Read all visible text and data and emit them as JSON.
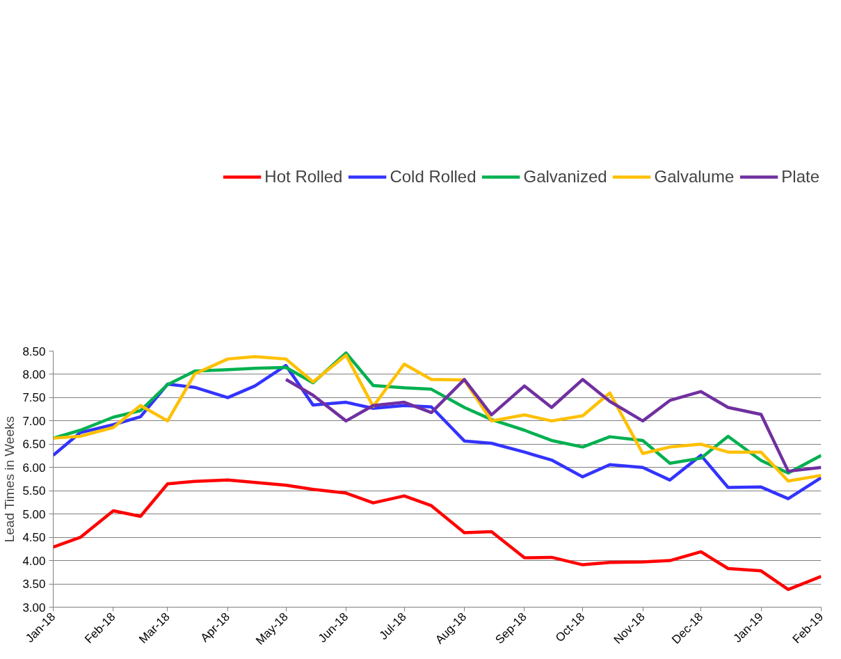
{
  "chart_data": {
    "type": "line",
    "ylabel": "Lead Times in Weeks",
    "x": [
      "2018-01-01",
      "2018-01-15",
      "2018-02-01",
      "2018-02-15",
      "2018-03-01",
      "2018-03-15",
      "2018-04-01",
      "2018-04-15",
      "2018-05-01",
      "2018-05-15",
      "2018-06-01",
      "2018-06-15",
      "2018-07-01",
      "2018-07-15",
      "2018-08-01",
      "2018-08-15",
      "2018-09-01",
      "2018-09-15",
      "2018-10-01",
      "2018-10-15",
      "2018-11-01",
      "2018-11-15",
      "2018-12-01",
      "2018-12-15",
      "2019-01-01",
      "2019-01-15",
      "2019-02-01"
    ],
    "series": [
      {
        "name": "Hot Rolled",
        "color": "#ff0000",
        "values": [
          4.29,
          4.5,
          5.07,
          4.95,
          5.65,
          5.7,
          5.73,
          5.68,
          5.62,
          5.53,
          5.45,
          5.24,
          5.39,
          5.18,
          4.6,
          4.62,
          4.06,
          4.07,
          3.91,
          3.96,
          3.97,
          4.0,
          4.19,
          3.83,
          3.78,
          3.38,
          3.66
        ]
      },
      {
        "name": "Cold Rolled",
        "color": "#3333ff",
        "values": [
          6.26,
          6.75,
          6.92,
          7.09,
          7.79,
          7.72,
          7.5,
          7.75,
          8.19,
          7.34,
          7.4,
          7.27,
          7.33,
          7.3,
          6.57,
          6.52,
          6.33,
          6.16,
          5.8,
          6.06,
          6.0,
          5.73,
          6.26,
          5.57,
          5.58,
          5.33,
          5.78
        ]
      },
      {
        "name": "Galvanized",
        "color": "#00b050",
        "values": [
          6.63,
          6.8,
          7.08,
          7.22,
          7.78,
          8.07,
          8.1,
          8.13,
          8.15,
          7.82,
          8.46,
          7.76,
          7.71,
          7.68,
          7.29,
          7.03,
          6.8,
          6.58,
          6.44,
          6.66,
          6.58,
          6.09,
          6.2,
          6.67,
          6.15,
          5.88,
          6.26
        ]
      },
      {
        "name": "Galvalume",
        "color": "#ffc000",
        "values": [
          6.63,
          6.67,
          6.86,
          7.33,
          7.0,
          8.01,
          8.33,
          8.38,
          8.33,
          7.84,
          8.41,
          7.31,
          8.22,
          7.89,
          7.88,
          7.0,
          7.13,
          7.0,
          7.11,
          7.6,
          6.3,
          6.44,
          6.5,
          6.33,
          6.33,
          5.71,
          5.83
        ]
      },
      {
        "name": "Plate",
        "color": "#7030a0",
        "values": [
          null,
          null,
          null,
          null,
          null,
          null,
          null,
          null,
          7.89,
          7.55,
          7.0,
          7.33,
          7.4,
          7.18,
          7.89,
          7.13,
          7.75,
          7.29,
          7.89,
          7.42,
          7.0,
          7.44,
          7.63,
          7.29,
          7.14,
          5.92,
          6.0
        ]
      }
    ],
    "xlim": [
      "2018-01-01",
      "2019-02-01"
    ],
    "xticks": [
      {
        "value": "2018-01-01",
        "label": "Jan-18"
      },
      {
        "value": "2018-02-01",
        "label": "Feb-18"
      },
      {
        "value": "2018-03-01",
        "label": "Mar-18"
      },
      {
        "value": "2018-04-01",
        "label": "Apr-18"
      },
      {
        "value": "2018-05-01",
        "label": "May-18"
      },
      {
        "value": "2018-06-01",
        "label": "Jun-18"
      },
      {
        "value": "2018-07-01",
        "label": "Jul-18"
      },
      {
        "value": "2018-08-01",
        "label": "Aug-18"
      },
      {
        "value": "2018-09-01",
        "label": "Sep-18"
      },
      {
        "value": "2018-10-01",
        "label": "Oct-18"
      },
      {
        "value": "2018-11-01",
        "label": "Nov-18"
      },
      {
        "value": "2018-12-01",
        "label": "Dec-18"
      },
      {
        "value": "2019-01-01",
        "label": "Jan-19"
      },
      {
        "value": "2019-02-01",
        "label": "Feb-19"
      }
    ],
    "ylim": [
      3.0,
      8.5
    ],
    "yticks": [
      {
        "value": 3.0,
        "label": "3.00"
      },
      {
        "value": 3.5,
        "label": "3.50"
      },
      {
        "value": 4.0,
        "label": "4.00"
      },
      {
        "value": 4.5,
        "label": "4.50"
      },
      {
        "value": 5.0,
        "label": "5.00"
      },
      {
        "value": 5.5,
        "label": "5.50"
      },
      {
        "value": 6.0,
        "label": "6.00"
      },
      {
        "value": 6.5,
        "label": "6.50"
      },
      {
        "value": 7.0,
        "label": "7.00"
      },
      {
        "value": 7.5,
        "label": "7.50"
      },
      {
        "value": 8.0,
        "label": "8.00"
      },
      {
        "value": 8.5,
        "label": "8.50"
      }
    ],
    "grid": "y",
    "legend": "top",
    "marker": "none",
    "line_style": "solid"
  }
}
